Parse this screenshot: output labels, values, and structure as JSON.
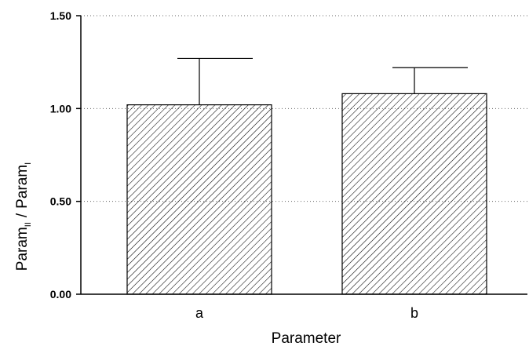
{
  "chart_data": {
    "type": "bar",
    "title": "",
    "xlabel": "Parameter",
    "ylabel": {
      "main1": "Param",
      "sub1": "II",
      "sep": "/",
      "main2": "Param",
      "sub2": "I"
    },
    "categories": [
      "a",
      "b"
    ],
    "values": [
      1.02,
      1.08
    ],
    "error_upper": [
      1.27,
      1.22
    ],
    "ylim": [
      0.0,
      1.5
    ],
    "yticks": [
      "0.00",
      "0.50",
      "1.00",
      "1.50"
    ],
    "ytick_values": [
      0.0,
      0.5,
      1.0,
      1.5
    ],
    "grid": "horizontal-dotted",
    "bar_fill": "hatched-diagonal",
    "colors": {
      "axis": "#000000",
      "bar_stroke": "#000000",
      "hatch": "#000000",
      "grid": "#666666"
    }
  }
}
